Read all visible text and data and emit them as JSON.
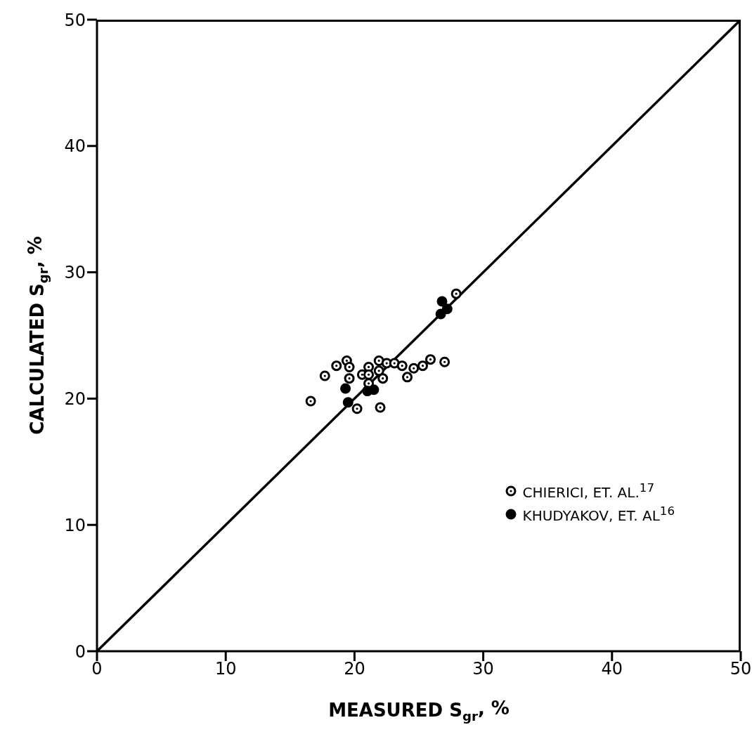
{
  "chart_data": {
    "type": "scatter",
    "xlabel": "MEASURED S$_{gr}$, %",
    "ylabel": "CALCULATED S$_{gr}$, %",
    "xlim": [
      0,
      50
    ],
    "ylim": [
      0,
      50
    ],
    "xticks": [
      0,
      10,
      20,
      30,
      40,
      50
    ],
    "yticks": [
      0,
      10,
      20,
      30,
      40,
      50
    ],
    "grid": false,
    "legend": "bottom right",
    "marker": "circle",
    "series": [
      {
        "name": "CHIERICI, ET. AL.$^{17}$",
        "color": "#000000",
        "x": [
          16.6,
          17.7,
          18.6,
          19.4,
          19.6,
          19.6,
          20.2,
          20.6,
          21.1,
          21.1,
          21.1,
          21.9,
          21.9,
          22.2,
          22.0,
          22.5,
          23.1,
          23.7,
          24.1,
          24.6,
          25.3,
          25.9,
          27.0,
          27.9
        ],
        "values": [
          19.8,
          21.8,
          22.6,
          23.0,
          22.5,
          21.6,
          19.2,
          21.9,
          22.5,
          21.9,
          21.2,
          23.0,
          22.2,
          21.6,
          19.3,
          22.8,
          22.8,
          22.6,
          21.7,
          22.4,
          22.6,
          23.1,
          22.9,
          28.3
        ]
      },
      {
        "name": "KHUDYAKOV, ET. AL$^{16}$",
        "color": "#000000",
        "x": [
          19.3,
          19.5,
          21.0,
          21.5,
          26.8,
          26.7,
          27.2
        ],
        "values": [
          20.8,
          19.7,
          20.6,
          20.7,
          27.7,
          26.7,
          27.1
        ]
      },
      {
        "type": "line",
        "color": "#000000",
        "x": [
          0,
          50
        ],
        "values": [
          0,
          50
        ],
        "marker": "none"
      }
    ]
  }
}
